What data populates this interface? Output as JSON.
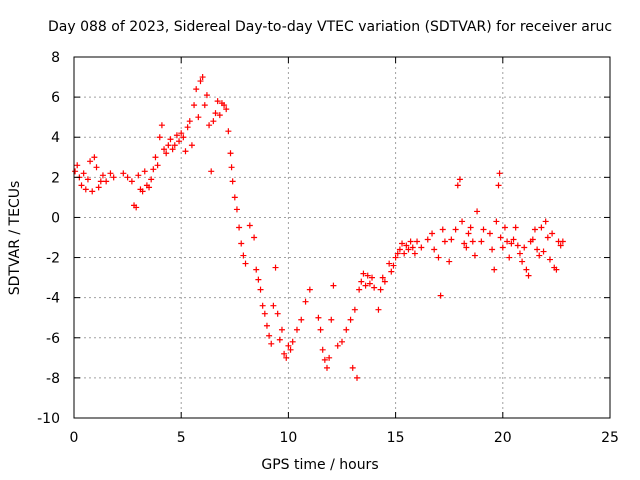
{
  "chart_data": {
    "type": "scatter",
    "title": "Day 088 of 2023, Sidereal Day-to-day VTEC variation (SDTVAR) for receiver aruc",
    "xlabel": "GPS time / hours",
    "ylabel": "SDTVAR / TECUs",
    "xlim": [
      0,
      25
    ],
    "ylim": [
      -10,
      8
    ],
    "xticks": [
      "0",
      "5",
      "10",
      "15",
      "20",
      "25"
    ],
    "yticks": [
      "-10",
      "-8",
      "-6",
      "-4",
      "-2",
      "0",
      "2",
      "4",
      "6",
      "8"
    ],
    "grid": true,
    "marker": "+",
    "color": "#ff0000",
    "series": [
      {
        "name": "SDTVAR",
        "points": [
          [
            0.05,
            2.3
          ],
          [
            0.15,
            2.6
          ],
          [
            0.25,
            2.0
          ],
          [
            0.35,
            1.6
          ],
          [
            0.45,
            2.2
          ],
          [
            0.55,
            1.4
          ],
          [
            0.65,
            1.9
          ],
          [
            0.75,
            2.8
          ],
          [
            0.85,
            1.3
          ],
          [
            0.95,
            3.0
          ],
          [
            1.05,
            2.5
          ],
          [
            1.15,
            1.5
          ],
          [
            1.25,
            1.8
          ],
          [
            1.35,
            2.1
          ],
          [
            1.5,
            1.8
          ],
          [
            1.7,
            2.2
          ],
          [
            1.85,
            2.0
          ],
          [
            2.3,
            2.2
          ],
          [
            2.5,
            2.0
          ],
          [
            2.7,
            1.8
          ],
          [
            2.8,
            0.6
          ],
          [
            2.9,
            0.5
          ],
          [
            3.0,
            2.1
          ],
          [
            3.1,
            1.4
          ],
          [
            3.2,
            1.3
          ],
          [
            3.3,
            2.3
          ],
          [
            3.4,
            1.6
          ],
          [
            3.5,
            1.5
          ],
          [
            3.6,
            1.9
          ],
          [
            3.7,
            2.4
          ],
          [
            3.8,
            3.0
          ],
          [
            3.9,
            2.6
          ],
          [
            4.0,
            4.0
          ],
          [
            4.1,
            4.6
          ],
          [
            4.2,
            3.4
          ],
          [
            4.3,
            3.2
          ],
          [
            4.4,
            3.6
          ],
          [
            4.5,
            3.9
          ],
          [
            4.6,
            3.4
          ],
          [
            4.7,
            3.6
          ],
          [
            4.8,
            4.1
          ],
          [
            4.9,
            3.8
          ],
          [
            5.0,
            4.2
          ],
          [
            5.1,
            4.0
          ],
          [
            5.2,
            3.3
          ],
          [
            5.3,
            4.5
          ],
          [
            5.4,
            4.8
          ],
          [
            5.5,
            3.6
          ],
          [
            5.6,
            5.6
          ],
          [
            5.7,
            6.4
          ],
          [
            5.8,
            5.0
          ],
          [
            5.9,
            6.8
          ],
          [
            6.0,
            7.0
          ],
          [
            6.1,
            5.6
          ],
          [
            6.2,
            6.1
          ],
          [
            6.3,
            4.6
          ],
          [
            6.4,
            2.3
          ],
          [
            6.5,
            4.8
          ],
          [
            6.6,
            5.2
          ],
          [
            6.7,
            5.8
          ],
          [
            6.8,
            5.1
          ],
          [
            6.9,
            5.7
          ],
          [
            7.0,
            5.6
          ],
          [
            7.1,
            5.4
          ],
          [
            7.2,
            4.3
          ],
          [
            7.3,
            3.2
          ],
          [
            7.35,
            2.5
          ],
          [
            7.4,
            1.8
          ],
          [
            7.5,
            1.0
          ],
          [
            7.6,
            0.4
          ],
          [
            7.7,
            -0.5
          ],
          [
            7.8,
            -1.3
          ],
          [
            7.9,
            -1.9
          ],
          [
            8.0,
            -2.3
          ],
          [
            8.2,
            -0.4
          ],
          [
            8.4,
            -1.0
          ],
          [
            8.5,
            -2.6
          ],
          [
            8.6,
            -3.1
          ],
          [
            8.7,
            -3.6
          ],
          [
            8.8,
            -4.4
          ],
          [
            8.9,
            -4.8
          ],
          [
            9.0,
            -5.4
          ],
          [
            9.1,
            -5.9
          ],
          [
            9.2,
            -6.3
          ],
          [
            9.3,
            -4.4
          ],
          [
            9.4,
            -2.5
          ],
          [
            9.5,
            -4.8
          ],
          [
            9.6,
            -6.1
          ],
          [
            9.7,
            -5.6
          ],
          [
            9.8,
            -6.8
          ],
          [
            9.9,
            -7.0
          ],
          [
            10.0,
            -6.4
          ],
          [
            10.1,
            -6.6
          ],
          [
            10.2,
            -6.2
          ],
          [
            10.4,
            -5.6
          ],
          [
            10.6,
            -5.1
          ],
          [
            10.8,
            -4.2
          ],
          [
            11.0,
            -3.6
          ],
          [
            11.4,
            -5.0
          ],
          [
            11.5,
            -5.6
          ],
          [
            11.6,
            -6.6
          ],
          [
            11.7,
            -7.1
          ],
          [
            11.8,
            -7.5
          ],
          [
            11.9,
            -7.0
          ],
          [
            12.0,
            -5.1
          ],
          [
            12.1,
            -3.4
          ],
          [
            12.3,
            -6.4
          ],
          [
            12.5,
            -6.2
          ],
          [
            12.7,
            -5.6
          ],
          [
            12.9,
            -5.1
          ],
          [
            13.0,
            -7.5
          ],
          [
            13.1,
            -4.6
          ],
          [
            13.2,
            -8.0
          ],
          [
            13.3,
            -3.6
          ],
          [
            13.4,
            -3.2
          ],
          [
            13.5,
            -2.8
          ],
          [
            13.6,
            -3.4
          ],
          [
            13.7,
            -2.9
          ],
          [
            13.8,
            -3.3
          ],
          [
            13.9,
            -3.0
          ],
          [
            14.0,
            -3.5
          ],
          [
            14.2,
            -4.6
          ],
          [
            14.3,
            -3.6
          ],
          [
            14.4,
            -3.0
          ],
          [
            14.5,
            -3.2
          ],
          [
            14.7,
            -2.3
          ],
          [
            14.8,
            -2.7
          ],
          [
            14.9,
            -2.4
          ],
          [
            15.0,
            -2.0
          ],
          [
            15.1,
            -1.8
          ],
          [
            15.2,
            -1.6
          ],
          [
            15.3,
            -1.3
          ],
          [
            15.4,
            -1.8
          ],
          [
            15.5,
            -1.4
          ],
          [
            15.6,
            -1.6
          ],
          [
            15.7,
            -1.2
          ],
          [
            15.8,
            -1.5
          ],
          [
            15.9,
            -1.8
          ],
          [
            16.0,
            -1.2
          ],
          [
            16.2,
            -1.5
          ],
          [
            16.5,
            -1.1
          ],
          [
            16.7,
            -0.8
          ],
          [
            16.8,
            -1.6
          ],
          [
            17.0,
            -2.0
          ],
          [
            17.1,
            -3.9
          ],
          [
            17.2,
            -0.6
          ],
          [
            17.3,
            -1.2
          ],
          [
            17.5,
            -2.2
          ],
          [
            17.6,
            -1.1
          ],
          [
            17.8,
            -0.6
          ],
          [
            17.9,
            1.6
          ],
          [
            18.0,
            1.9
          ],
          [
            18.1,
            -0.2
          ],
          [
            18.2,
            -1.3
          ],
          [
            18.3,
            -1.5
          ],
          [
            18.4,
            -0.8
          ],
          [
            18.5,
            -0.5
          ],
          [
            18.6,
            -1.2
          ],
          [
            18.7,
            -1.9
          ],
          [
            18.8,
            0.3
          ],
          [
            19.0,
            -1.2
          ],
          [
            19.1,
            -0.6
          ],
          [
            19.4,
            -0.8
          ],
          [
            19.5,
            -1.6
          ],
          [
            19.6,
            -2.6
          ],
          [
            19.7,
            -0.2
          ],
          [
            19.8,
            1.6
          ],
          [
            19.85,
            2.2
          ],
          [
            19.9,
            -1.0
          ],
          [
            20.0,
            -1.5
          ],
          [
            20.1,
            -0.5
          ],
          [
            20.2,
            -1.2
          ],
          [
            20.3,
            -2.0
          ],
          [
            20.4,
            -1.3
          ],
          [
            20.5,
            -1.1
          ],
          [
            20.6,
            -0.5
          ],
          [
            20.7,
            -1.4
          ],
          [
            20.8,
            -1.8
          ],
          [
            20.9,
            -2.2
          ],
          [
            21.0,
            -1.5
          ],
          [
            21.1,
            -2.6
          ],
          [
            21.2,
            -2.9
          ],
          [
            21.3,
            -1.2
          ],
          [
            21.4,
            -1.1
          ],
          [
            21.5,
            -0.6
          ],
          [
            21.6,
            -1.6
          ],
          [
            21.7,
            -1.9
          ],
          [
            21.8,
            -0.5
          ],
          [
            21.9,
            -1.7
          ],
          [
            22.0,
            -0.2
          ],
          [
            22.1,
            -1.0
          ],
          [
            22.2,
            -2.1
          ],
          [
            22.3,
            -0.8
          ],
          [
            22.4,
            -2.5
          ],
          [
            22.5,
            -2.6
          ],
          [
            22.6,
            -1.2
          ],
          [
            22.7,
            -1.4
          ],
          [
            22.8,
            -1.2
          ]
        ]
      }
    ]
  }
}
